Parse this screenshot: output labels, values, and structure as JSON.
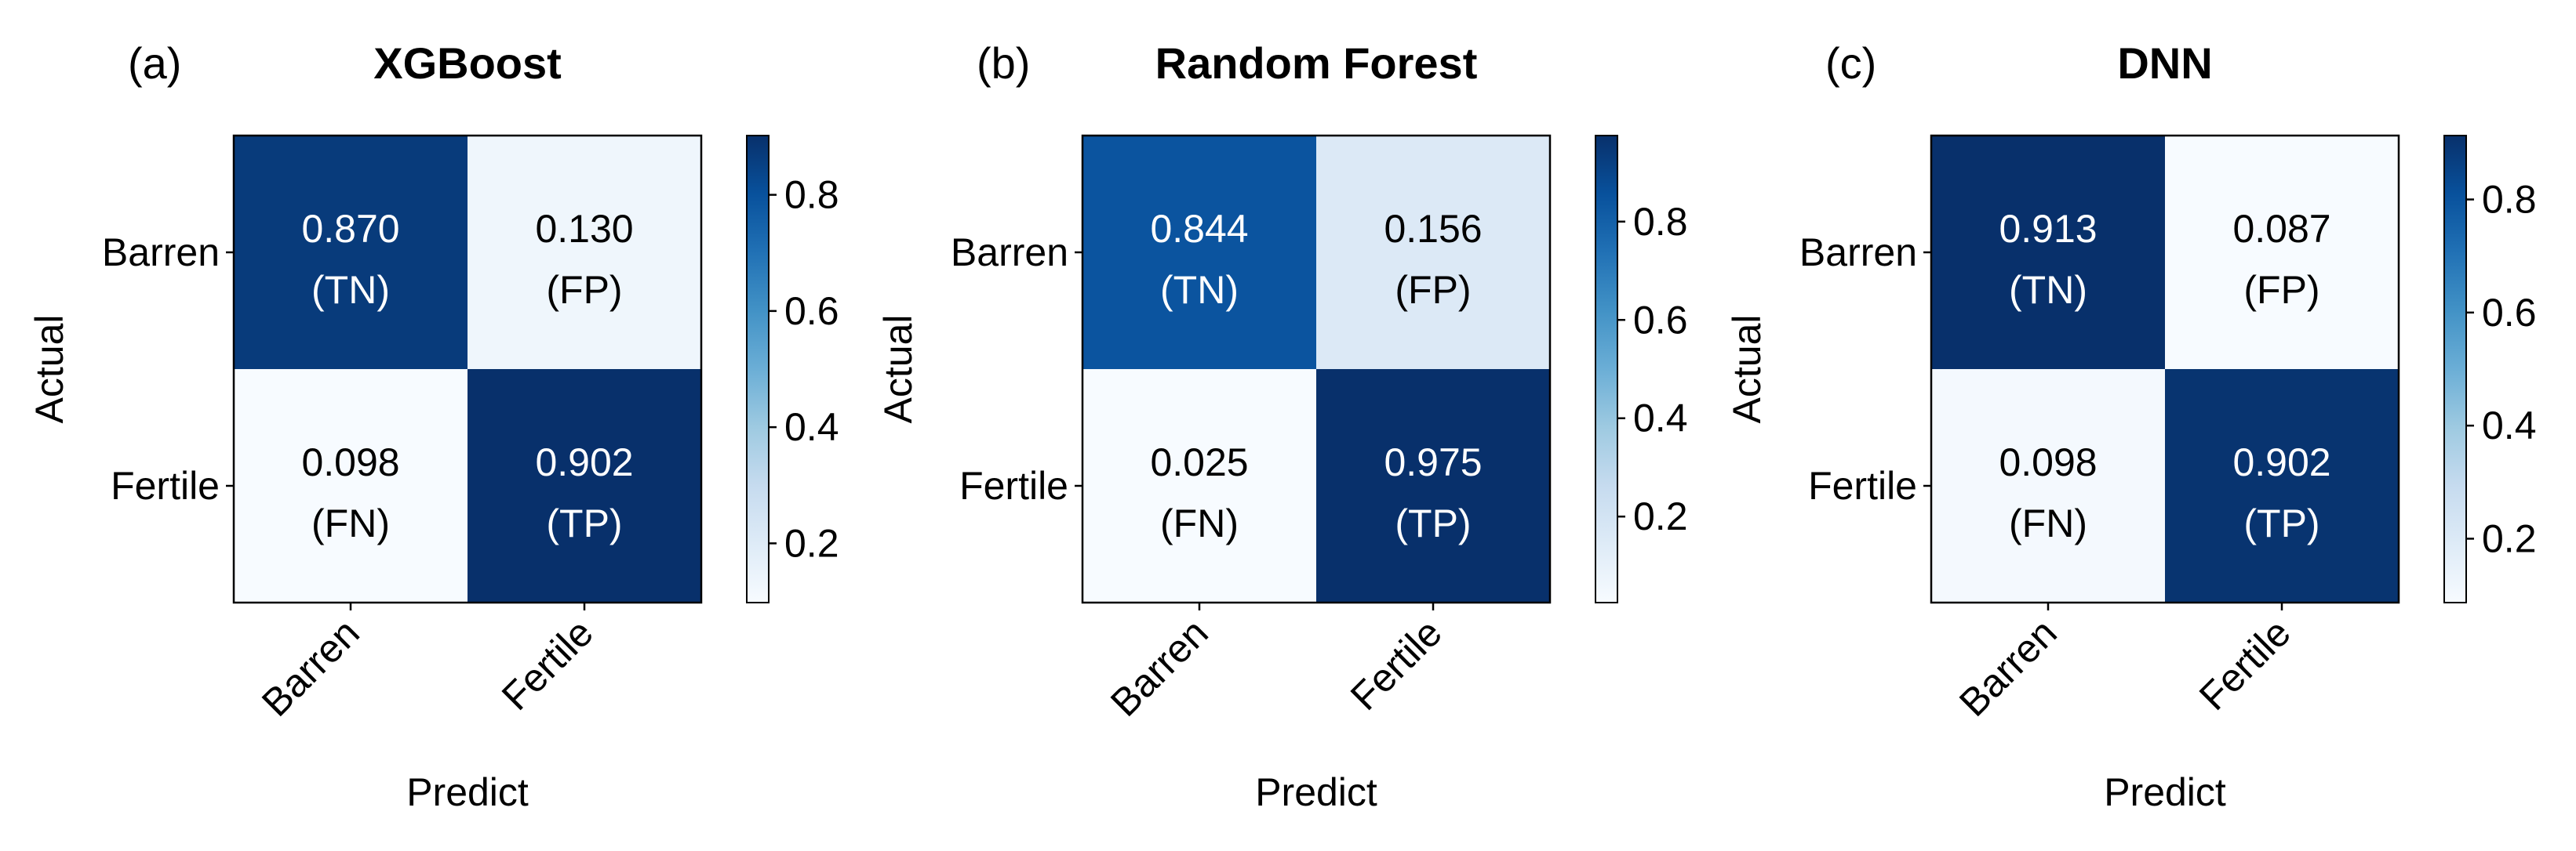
{
  "colormap": {
    "name": "Blues",
    "stops": [
      "#f7fbff",
      "#deebf7",
      "#c6dbef",
      "#9ecae1",
      "#6baed6",
      "#4292c6",
      "#2171b5",
      "#08519c",
      "#08306b"
    ]
  },
  "chart_data": [
    {
      "type": "heatmap",
      "panel_label": "(a)",
      "title": "XGBoost",
      "xlabel": "Predict",
      "ylabel": "Actual",
      "x_categories": [
        "Barren",
        "Fertile"
      ],
      "y_categories": [
        "Barren",
        "Fertile"
      ],
      "values": [
        [
          0.87,
          0.13
        ],
        [
          0.098,
          0.902
        ]
      ],
      "cell_text": [
        [
          "0.870",
          "0.130"
        ],
        [
          "0.098",
          "0.902"
        ]
      ],
      "cell_labels": [
        [
          "(TN)",
          "(FP)"
        ],
        [
          "(FN)",
          "(TP)"
        ]
      ],
      "colorbar": {
        "min": 0.098,
        "max": 0.902,
        "ticks": [
          0.2,
          0.4,
          0.6,
          0.8
        ],
        "tick_labels": [
          "0.2",
          "0.4",
          "0.6",
          "0.8"
        ]
      }
    },
    {
      "type": "heatmap",
      "panel_label": "(b)",
      "title": "Random Forest",
      "xlabel": "Predict",
      "ylabel": "Actual",
      "x_categories": [
        "Barren",
        "Fertile"
      ],
      "y_categories": [
        "Barren",
        "Fertile"
      ],
      "values": [
        [
          0.844,
          0.156
        ],
        [
          0.025,
          0.975
        ]
      ],
      "cell_text": [
        [
          "0.844",
          "0.156"
        ],
        [
          "0.025",
          "0.975"
        ]
      ],
      "cell_labels": [
        [
          "(TN)",
          "(FP)"
        ],
        [
          "(FN)",
          "(TP)"
        ]
      ],
      "colorbar": {
        "min": 0.025,
        "max": 0.975,
        "ticks": [
          0.2,
          0.4,
          0.6,
          0.8
        ],
        "tick_labels": [
          "0.2",
          "0.4",
          "0.6",
          "0.8"
        ]
      }
    },
    {
      "type": "heatmap",
      "panel_label": "(c)",
      "title": "DNN",
      "xlabel": "Predict",
      "ylabel": "Actual",
      "x_categories": [
        "Barren",
        "Fertile"
      ],
      "y_categories": [
        "Barren",
        "Fertile"
      ],
      "values": [
        [
          0.913,
          0.087
        ],
        [
          0.098,
          0.902
        ]
      ],
      "cell_text": [
        [
          "0.913",
          "0.087"
        ],
        [
          "0.098",
          "0.902"
        ]
      ],
      "cell_labels": [
        [
          "(TN)",
          "(FP)"
        ],
        [
          "(FN)",
          "(TP)"
        ]
      ],
      "colorbar": {
        "min": 0.087,
        "max": 0.913,
        "ticks": [
          0.2,
          0.4,
          0.6,
          0.8
        ],
        "tick_labels": [
          "0.2",
          "0.4",
          "0.6",
          "0.8"
        ]
      }
    }
  ]
}
